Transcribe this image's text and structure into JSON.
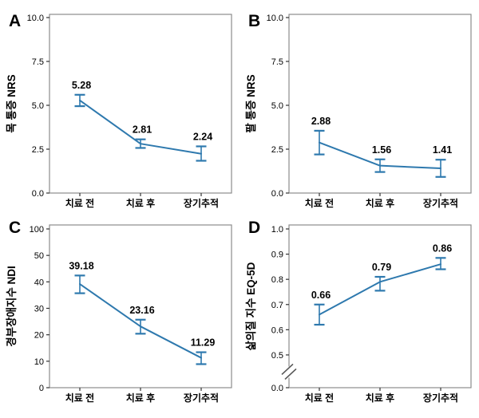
{
  "figure": {
    "background": "#ffffff",
    "line_color": "#2e79ae",
    "frame_color": "#8d8d8d",
    "tick_color": "#333333",
    "text_color": "#000000",
    "break_mark_color": "#555555"
  },
  "chart_data": [
    {
      "type": "line",
      "panel_letter": "A",
      "ylabel": "목 통증 NRS",
      "categories": [
        "치료 전",
        "치료 후",
        "장기추적"
      ],
      "yticks": [
        {
          "v": 0,
          "label": "0.0"
        },
        {
          "v": 2.5,
          "label": "2.5"
        },
        {
          "v": 5,
          "label": "5.0"
        },
        {
          "v": 7.5,
          "label": "7.5"
        },
        {
          "v": 10,
          "label": "10.0"
        }
      ],
      "ylim_note": "NRS scale 0-10",
      "axis_break": false,
      "points": [
        {
          "category": "치료 전",
          "value": 5.28,
          "label": "5.28",
          "err_lo": 4.95,
          "err_hi": 5.6
        },
        {
          "category": "치료 후",
          "value": 2.81,
          "label": "2.81",
          "err_lo": 2.57,
          "err_hi": 3.06
        },
        {
          "category": "장기추적",
          "value": 2.24,
          "label": "2.24",
          "err_lo": 1.84,
          "err_hi": 2.66
        }
      ]
    },
    {
      "type": "line",
      "panel_letter": "B",
      "ylabel": "팔 통증 NRS",
      "categories": [
        "치료 전",
        "치료 후",
        "장기추적"
      ],
      "yticks": [
        {
          "v": 0,
          "label": "0.0"
        },
        {
          "v": 2.5,
          "label": "2.5"
        },
        {
          "v": 5,
          "label": "5.0"
        },
        {
          "v": 7.5,
          "label": "7.5"
        },
        {
          "v": 10,
          "label": "10.0"
        }
      ],
      "ylim_note": "NRS scale 0-10",
      "axis_break": false,
      "points": [
        {
          "category": "치료 전",
          "value": 2.88,
          "label": "2.88",
          "err_lo": 2.2,
          "err_hi": 3.55
        },
        {
          "category": "치료 후",
          "value": 1.56,
          "label": "1.56",
          "err_lo": 1.2,
          "err_hi": 1.92
        },
        {
          "category": "장기추적",
          "value": 1.41,
          "label": "1.41",
          "err_lo": 0.92,
          "err_hi": 1.9
        }
      ]
    },
    {
      "type": "line",
      "panel_letter": "C",
      "ylabel": "경부장애지수 NDI",
      "categories": [
        "치료 전",
        "치료 후",
        "장기추적"
      ],
      "yticks": [
        {
          "v": 0,
          "label": "0"
        },
        {
          "v": 10,
          "label": "10"
        },
        {
          "v": 20,
          "label": "20"
        },
        {
          "v": 30,
          "label": "30"
        },
        {
          "v": 40,
          "label": "40"
        },
        {
          "v": 50,
          "label": "50"
        },
        {
          "v": 100,
          "label": "100"
        }
      ],
      "ylim_note": "NDI 0-100, 50-100 compressed to one tick interval",
      "axis_break": false,
      "points": [
        {
          "category": "치료 전",
          "value": 39.18,
          "label": "39.18",
          "err_lo": 35.7,
          "err_hi": 42.4
        },
        {
          "category": "치료 후",
          "value": 23.16,
          "label": "23.16",
          "err_lo": 20.4,
          "err_hi": 25.7
        },
        {
          "category": "장기추적",
          "value": 11.29,
          "label": "11.29",
          "err_lo": 8.9,
          "err_hi": 13.4
        }
      ]
    },
    {
      "type": "line",
      "panel_letter": "D",
      "ylabel": "삶의질 지수 EQ-5D",
      "categories": [
        "치료 전",
        "치료 후",
        "장기추적"
      ],
      "yticks": [
        {
          "v": 0,
          "label": "0.0"
        },
        {
          "v": 0.5,
          "label": "0.5"
        },
        {
          "v": 0.6,
          "label": "0.6"
        },
        {
          "v": 0.7,
          "label": "0.7"
        },
        {
          "v": 0.8,
          "label": "0.8"
        },
        {
          "v": 0.9,
          "label": "0.9"
        },
        {
          "v": 1.0,
          "label": "1.0"
        }
      ],
      "ylim_note": "EQ-5D index, axis broken between 0.0 and 0.5",
      "axis_break": true,
      "points": [
        {
          "category": "치료 전",
          "value": 0.66,
          "label": "0.66",
          "err_lo": 0.62,
          "err_hi": 0.7
        },
        {
          "category": "치료 후",
          "value": 0.79,
          "label": "0.79",
          "err_lo": 0.755,
          "err_hi": 0.81
        },
        {
          "category": "장기추적",
          "value": 0.86,
          "label": "0.86",
          "err_lo": 0.84,
          "err_hi": 0.885
        }
      ]
    }
  ]
}
